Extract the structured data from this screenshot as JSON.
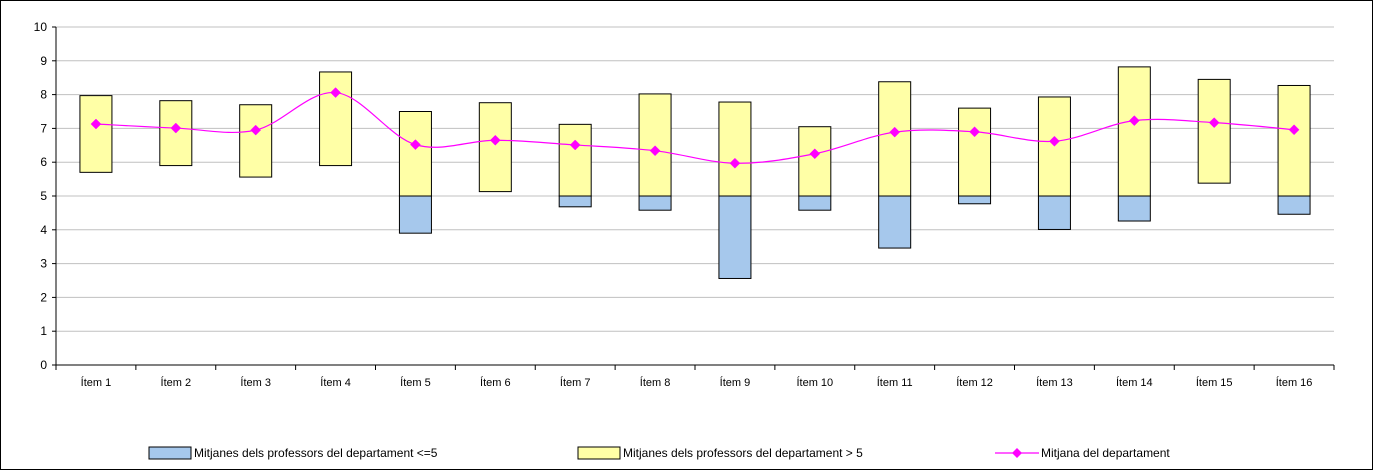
{
  "chart_data": {
    "type": "bar",
    "categories": [
      "Ítem 1",
      "Ítem 2",
      "Ítem 3",
      "Ítem 4",
      "Ítem 5",
      "Ítem 6",
      "Ítem 7",
      "Ítem 8",
      "Ítem 9",
      "Ítem 10",
      "Ítem 11",
      "Ítem 12",
      "Ítem 13",
      "Ítem 14",
      "Ítem 15",
      "Ítem 16"
    ],
    "ylim": [
      0,
      10
    ],
    "yticks": [
      "0",
      "1",
      "2",
      "3",
      "4",
      "5",
      "6",
      "7",
      "8",
      "9",
      "10"
    ],
    "grid": true,
    "legend_position": "bottom",
    "series": [
      {
        "name": "Mitjanes dels professors del departament <=5",
        "kind": "floating-bar",
        "color": "#a6c8ec",
        "low": [
          null,
          null,
          null,
          null,
          3.9,
          null,
          4.68,
          4.58,
          2.56,
          4.58,
          3.46,
          4.77,
          4.01,
          4.26,
          null,
          4.46
        ],
        "high": [
          null,
          null,
          null,
          null,
          5,
          null,
          5,
          5,
          5,
          5,
          5,
          5,
          5,
          5,
          null,
          5
        ]
      },
      {
        "name": "Mitjanes dels professors del departament > 5",
        "kind": "floating-bar",
        "color": "#ffffa6",
        "low": [
          5.7,
          5.9,
          5.56,
          5.9,
          5,
          5.13,
          5,
          5,
          5,
          5,
          5,
          5,
          5,
          5,
          5.38,
          5
        ],
        "high": [
          7.97,
          7.82,
          7.7,
          8.67,
          7.5,
          7.76,
          7.12,
          8.02,
          7.78,
          7.05,
          8.38,
          7.6,
          7.93,
          8.82,
          8.45,
          8.27
        ]
      },
      {
        "name": "Mitjana del departament",
        "kind": "line",
        "color": "#ff00ff",
        "values": [
          7.13,
          7.01,
          6.95,
          8.06,
          6.52,
          6.65,
          6.51,
          6.34,
          5.97,
          6.25,
          6.89,
          6.9,
          6.62,
          7.23,
          7.17,
          6.96
        ]
      }
    ]
  }
}
